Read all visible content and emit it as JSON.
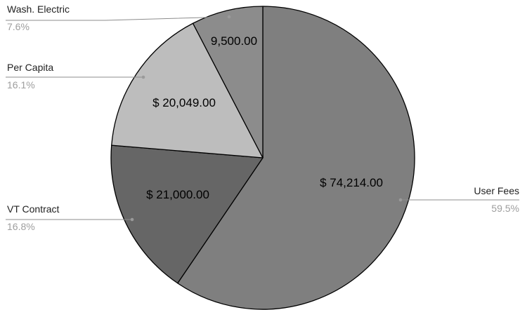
{
  "chart_data": {
    "type": "pie",
    "slices": [
      {
        "label": "User Fees",
        "value": 74214.0,
        "value_label": "$ 74,214.00",
        "percent_label": "59.5%",
        "color": "#7f7f7f"
      },
      {
        "label": "VT Contract",
        "value": 21000.0,
        "value_label": "$ 21,000.00",
        "percent_label": "16.8%",
        "color": "#666666"
      },
      {
        "label": "Per Capita",
        "value": 20049.0,
        "value_label": "$ 20,049.00",
        "percent_label": "16.1%",
        "color": "#bdbdbd"
      },
      {
        "label": "Wash. Electric",
        "value": 9500.0,
        "value_label": "9,500.00",
        "percent_label": "7.6%",
        "color": "#8c8c8c"
      }
    ],
    "start_angle": "top (12 o'clock)",
    "direction": "clockwise",
    "legend": "none (leader-line labels)"
  }
}
